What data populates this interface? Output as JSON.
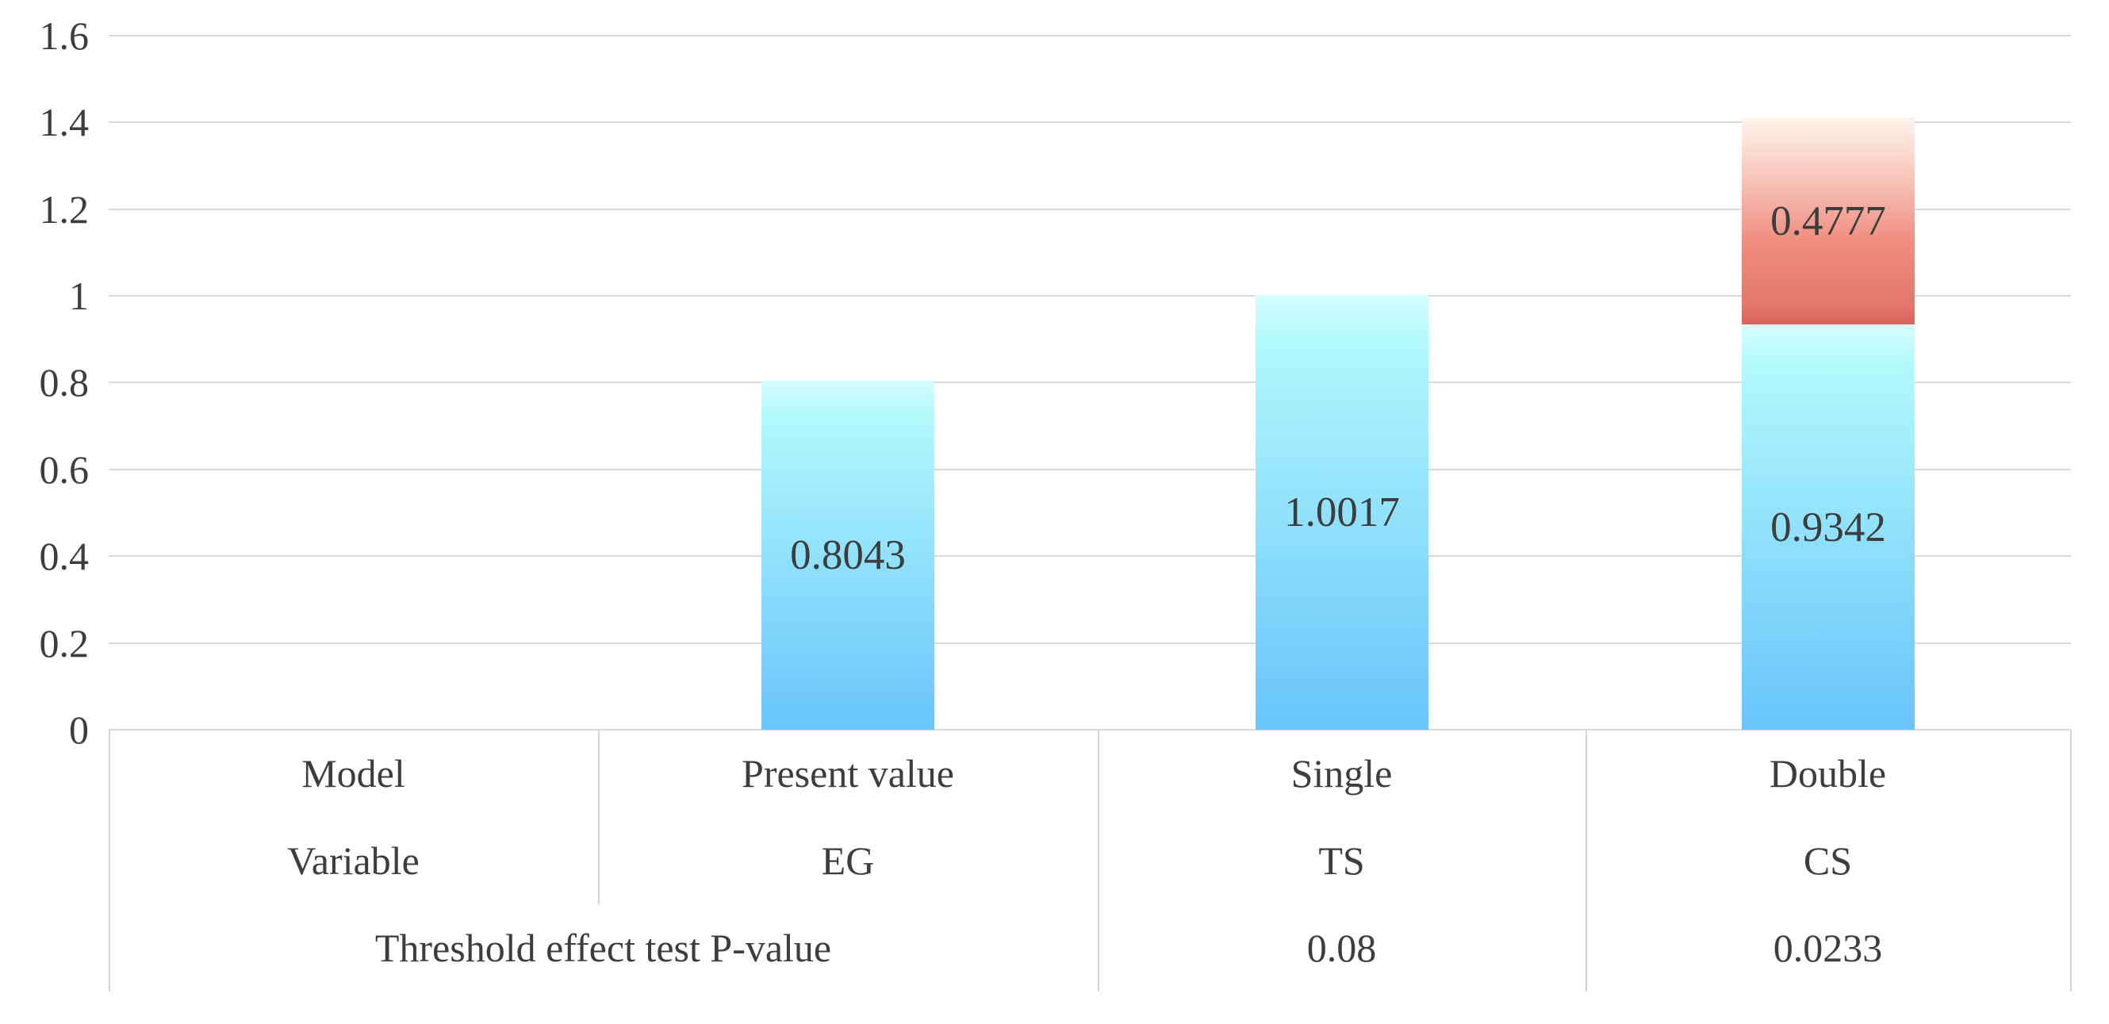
{
  "chart_data": {
    "type": "bar",
    "stacked": true,
    "title": "",
    "categories": [
      "Present value",
      "Single",
      "Double"
    ],
    "series": [
      {
        "name": "base_segment",
        "values": [
          0.8043,
          1.0017,
          0.9342
        ],
        "labels": [
          "0.8043",
          "1.0017",
          "0.9342"
        ]
      },
      {
        "name": "top_segment",
        "values": [
          0,
          0,
          0.4777
        ],
        "labels": [
          "",
          "",
          "0.4777"
        ]
      }
    ],
    "ylim": [
      0,
      1.6
    ],
    "ytick_step": 0.2,
    "yticks": [
      {
        "value": 0,
        "label": "0"
      },
      {
        "value": 0.2,
        "label": "0.2"
      },
      {
        "value": 0.4,
        "label": "0.4"
      },
      {
        "value": 0.6,
        "label": "0.6"
      },
      {
        "value": 0.8,
        "label": "0.8"
      },
      {
        "value": 1,
        "label": "1"
      },
      {
        "value": 1.2,
        "label": "1.2"
      },
      {
        "value": 1.4,
        "label": "1.4"
      },
      {
        "value": 1.6,
        "label": "1.6"
      }
    ],
    "grid": true,
    "legend_position": "none"
  },
  "table": {
    "rows": [
      {
        "cells": [
          {
            "text": "Model",
            "span": 1
          },
          {
            "text": "Present value",
            "span": 1
          },
          {
            "text": "Single",
            "span": 1
          },
          {
            "text": "Double",
            "span": 1
          }
        ]
      },
      {
        "cells": [
          {
            "text": "Variable",
            "span": 1
          },
          {
            "text": "EG",
            "span": 1
          },
          {
            "text": "TS",
            "span": 1
          },
          {
            "text": "CS",
            "span": 1
          }
        ]
      },
      {
        "cells": [
          {
            "text": "Threshold effect test P-value",
            "span": 2
          },
          {
            "text": "0.08",
            "span": 1
          },
          {
            "text": "0.0233",
            "span": 1
          }
        ]
      }
    ]
  },
  "colors": {
    "background": "#ffffff",
    "gridline": "#d9d9d9",
    "table_border": "#d4d4d4",
    "text": "#3d3d3d",
    "bar_blue_top": "#d5fdfe",
    "bar_blue_light": "#b2f9fd",
    "bar_blue_bottom": "#69c4fb",
    "bar_red_top": "#fef4ec",
    "bar_red_upper": "#fbdcd2",
    "bar_red_mid": "#ef8e80",
    "bar_red_lower": "#e4766c",
    "bar_red_bottom": "#d6625a"
  }
}
